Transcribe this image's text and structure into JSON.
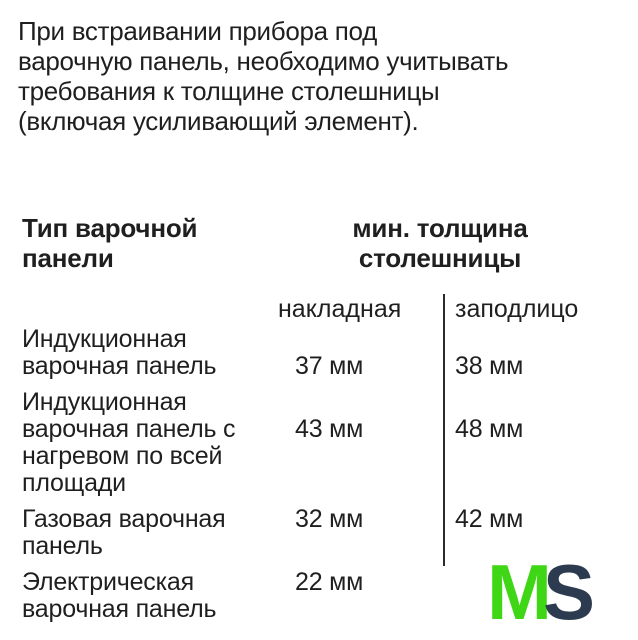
{
  "intro": {
    "lines": [
      "При встраивании прибора под",
      "варочную панель, необходимо учитывать",
      "требования к толщине столешницы",
      "(включая усиливающий элемент)."
    ]
  },
  "table": {
    "col1_header": "Тип варочной панели",
    "col2_header": "мин. толщина столешницы",
    "sub_headers": [
      "накладная",
      "заподлицо"
    ],
    "rows": [
      {
        "type": "Индукционная варочная панель",
        "overlay": "37 мм",
        "flush": "38 мм"
      },
      {
        "type": "Индукционная варочная панель с нагревом по всей площади",
        "overlay": "43 мм",
        "flush": "48 мм"
      },
      {
        "type": "Газовая варочная панель",
        "overlay": "32 мм",
        "flush": "42 мм"
      },
      {
        "type": "Электрическая варочная панель",
        "overlay": "22 мм",
        "flush": ""
      }
    ]
  },
  "watermark": {
    "m": "M",
    "s": "S"
  },
  "colors": {
    "background": "#ffffff",
    "text": "#1f1f1f",
    "divider": "#2b2b2b",
    "logo_m": "#3fd615",
    "logo_s": "#2c3b4f"
  }
}
